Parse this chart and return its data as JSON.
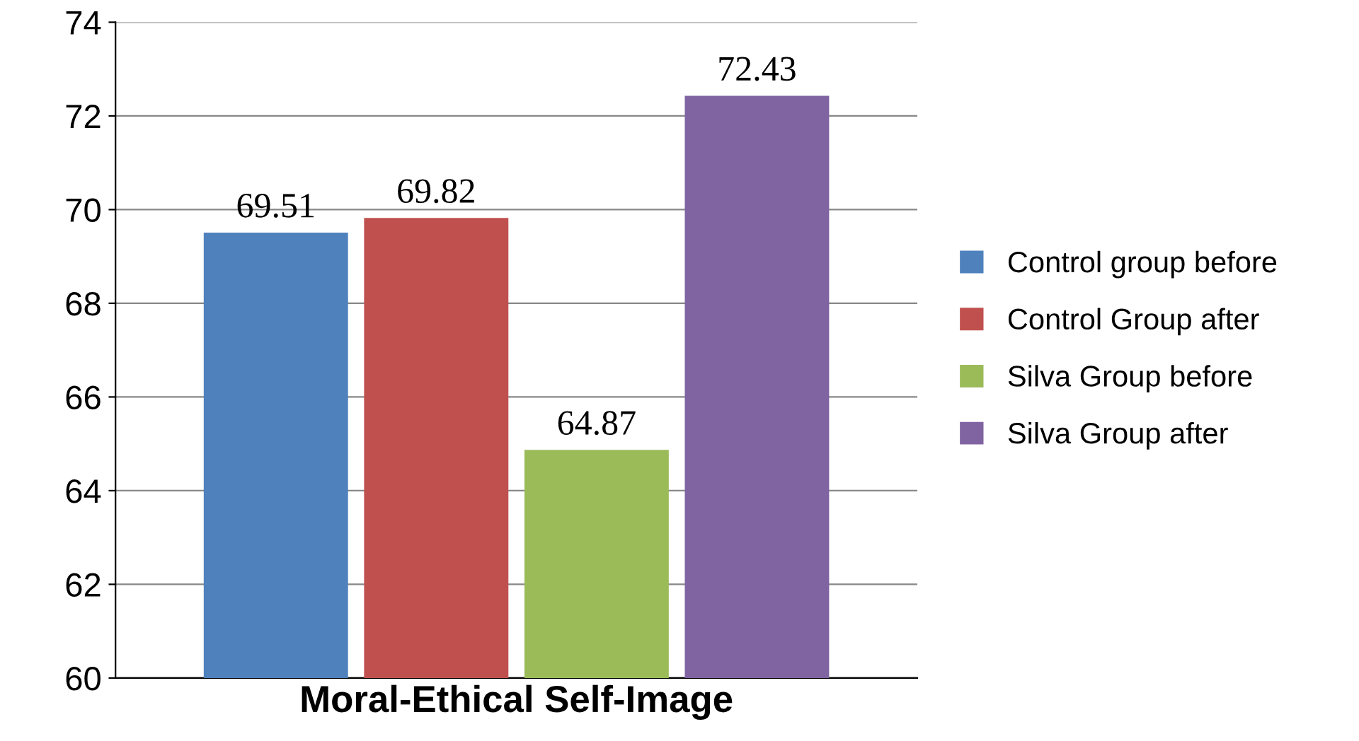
{
  "chart_data": {
    "type": "bar",
    "categories": [
      "Moral-Ethical Self-Image"
    ],
    "series": [
      {
        "name": "Control group before",
        "color": "#4f81bd",
        "values": [
          69.51
        ]
      },
      {
        "name": "Control Group after",
        "color": "#c0504d",
        "values": [
          69.82
        ]
      },
      {
        "name": "Silva Group before",
        "color": "#9bbb59",
        "values": [
          64.87
        ]
      },
      {
        "name": "Silva Group after",
        "color": "#8064a2",
        "values": [
          72.43
        ]
      }
    ],
    "ylim": [
      60,
      74
    ],
    "yticks": [
      60,
      62,
      64,
      66,
      68,
      70,
      72,
      74
    ],
    "grid": "y",
    "legend": "right",
    "data_labels": true
  }
}
